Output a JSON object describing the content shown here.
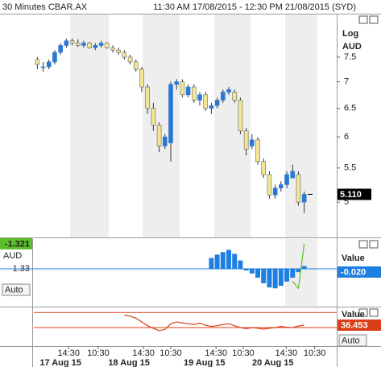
{
  "chart_data": [
    {
      "type": "candlestick",
      "title": "30 Minutes CBAR.AX",
      "subtitle": "11:30 AM 17/08/2015 - 12:30 PM 21/08/2015 (SYD)",
      "log_scale": true,
      "scale_label": "Log",
      "unit": "AUD",
      "open": [
        7.45,
        7.3,
        7.3,
        7.4,
        7.6,
        7.75,
        7.85,
        7.8,
        7.75,
        7.8,
        7.7,
        7.75,
        7.8,
        7.7,
        7.65,
        7.6,
        7.5,
        7.4,
        7.25,
        6.9,
        6.5,
        6.2,
        5.85,
        5.9,
        6.95,
        7.0,
        6.75,
        6.9,
        6.65,
        6.75,
        6.5,
        6.55,
        6.65,
        6.8,
        6.8,
        6.65,
        6.1,
        5.85,
        5.95,
        5.6,
        5.4,
        5.1,
        5.2,
        5.25,
        5.35,
        5.4,
        5.0
      ],
      "high": [
        7.5,
        7.4,
        7.45,
        7.65,
        7.8,
        7.9,
        7.9,
        7.88,
        7.85,
        7.82,
        7.8,
        7.85,
        7.82,
        7.75,
        7.7,
        7.65,
        7.55,
        7.45,
        7.3,
        6.95,
        6.6,
        6.25,
        6.05,
        7.0,
        7.05,
        7.05,
        6.95,
        6.95,
        6.8,
        6.8,
        6.6,
        6.7,
        6.85,
        6.9,
        6.85,
        6.7,
        6.15,
        6.05,
        6.0,
        5.65,
        5.45,
        5.25,
        5.3,
        5.45,
        5.55,
        5.45,
        5.15
      ],
      "low": [
        7.25,
        7.2,
        7.25,
        7.35,
        7.55,
        7.7,
        7.75,
        7.72,
        7.7,
        7.68,
        7.65,
        7.7,
        7.68,
        7.6,
        7.55,
        7.45,
        7.35,
        7.2,
        6.8,
        6.4,
        6.1,
        5.75,
        5.8,
        5.6,
        6.85,
        6.7,
        6.7,
        6.6,
        6.55,
        6.45,
        6.4,
        6.5,
        6.6,
        6.75,
        6.6,
        6.05,
        5.7,
        5.8,
        5.55,
        5.35,
        5.05,
        5.05,
        5.15,
        5.2,
        5.35,
        4.95,
        4.85
      ],
      "close": [
        7.35,
        7.3,
        7.4,
        7.6,
        7.75,
        7.85,
        7.8,
        7.75,
        7.8,
        7.7,
        7.75,
        7.8,
        7.7,
        7.65,
        7.6,
        7.5,
        7.4,
        7.25,
        6.9,
        6.5,
        6.2,
        5.85,
        6.0,
        6.95,
        7.0,
        6.75,
        6.9,
        6.65,
        6.75,
        6.5,
        6.55,
        6.65,
        6.8,
        6.85,
        6.65,
        6.1,
        5.8,
        5.95,
        5.6,
        5.4,
        5.1,
        5.2,
        5.25,
        5.4,
        5.45,
        5.0,
        5.11
      ],
      "up_color": "#2a78d4",
      "down_color": "#f3e695",
      "ylim": [
        4.53,
        8.45
      ],
      "yticks": [
        5,
        5.5,
        6,
        6.5,
        7,
        7.5
      ],
      "last_price": {
        "value": 5.11,
        "label": "5.110"
      },
      "xlim": [
        -0.6,
        51.6
      ],
      "xticks": [
        {
          "value": 5.4,
          "label": "14:30"
        },
        {
          "value": 10.5,
          "label": "10:30"
        },
        {
          "value": 18.3,
          "label": "14:30"
        },
        {
          "value": 23,
          "label": "10:30"
        },
        {
          "value": 30.8,
          "label": "14:30"
        },
        {
          "value": 35.5,
          "label": "10:30"
        },
        {
          "value": 42.9,
          "label": "14:30"
        },
        {
          "value": 47.8,
          "label": "10:30"
        }
      ],
      "day_labels": [
        {
          "value": 4,
          "label": "17 Aug 15"
        },
        {
          "value": 15.8,
          "label": "18 Aug 15"
        },
        {
          "value": 28.8,
          "label": "19 Aug 15"
        },
        {
          "value": 40.6,
          "label": "20 Aug 15"
        }
      ]
    },
    {
      "type": "bar",
      "unit": "AUD",
      "ylim": [
        -1.3433,
        -1.3193
      ],
      "yticks": [
        -1.33
      ],
      "series": [
        {
          "type": "bar",
          "color": "#1e7fe0",
          "values": [
            null,
            null,
            null,
            null,
            null,
            null,
            null,
            null,
            null,
            null,
            null,
            null,
            null,
            null,
            null,
            null,
            null,
            null,
            null,
            null,
            null,
            null,
            null,
            null,
            null,
            null,
            null,
            null,
            null,
            null,
            -1.3261,
            -1.3249,
            -1.324,
            -1.3232,
            -1.3246,
            -1.327,
            -1.3306,
            -1.3317,
            -1.3332,
            -1.3352,
            -1.3367,
            -1.337,
            -1.3361,
            -1.3346,
            -1.3332,
            -1.3312,
            -1.329
          ]
        },
        {
          "type": "line",
          "color": "#5bbf2a",
          "values": [
            null,
            null,
            null,
            null,
            null,
            null,
            null,
            null,
            null,
            null,
            null,
            null,
            null,
            null,
            null,
            null,
            null,
            null,
            null,
            null,
            null,
            null,
            null,
            null,
            null,
            null,
            null,
            null,
            null,
            null,
            null,
            null,
            null,
            null,
            null,
            null,
            null,
            null,
            null,
            null,
            null,
            null,
            null,
            null,
            -1.3345,
            -1.337,
            -1.321
          ]
        }
      ],
      "line_label": {
        "value": -1.321,
        "label": "-1.321"
      },
      "readout_title": "Value",
      "readout": "-0.020",
      "auto_label": "Auto"
    },
    {
      "type": "line",
      "ylim": [
        -18.9,
        81.1
      ],
      "levels": [
        30,
        70
      ],
      "level_color": "#d9401a",
      "series": [
        {
          "color": "#d9401a",
          "values": [
            null,
            null,
            null,
            null,
            null,
            null,
            null,
            null,
            null,
            null,
            null,
            null,
            null,
            null,
            null,
            63,
            60,
            55,
            45,
            35,
            28,
            22,
            25,
            40,
            45,
            42,
            40,
            38,
            42,
            36,
            33,
            35,
            38,
            40,
            35,
            30,
            27,
            30,
            28,
            26,
            28,
            30,
            33,
            31,
            30,
            34,
            36.453
          ]
        }
      ],
      "last_value": {
        "value": 36.453,
        "label": "36.453"
      },
      "readout_title": "Value",
      "auto_label": "Auto"
    }
  ]
}
